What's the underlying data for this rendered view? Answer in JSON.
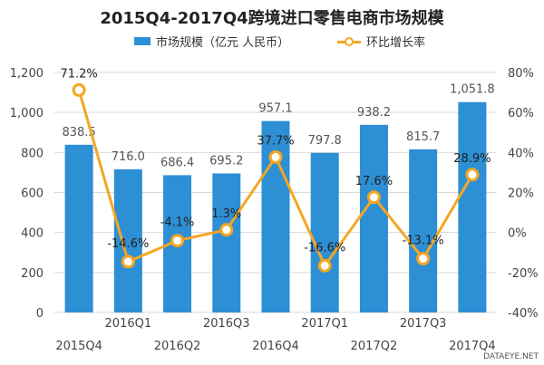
{
  "title": "2015Q4-2017Q4跨境进口零售电商市场规模",
  "legend": {
    "bar_label": "市场规模（亿元 人民币）",
    "line_label": "环比增长率"
  },
  "watermark": "DATAEYE.NET",
  "colors": {
    "bar": "#2d8fd4",
    "line": "#f5a623",
    "grid": "#d9d9d9"
  },
  "chart_data": {
    "type": "bar",
    "title": "2015Q4-2017Q4跨境进口零售电商市场规模",
    "categories": [
      "2015Q4",
      "2016Q1",
      "2016Q2",
      "2016Q3",
      "2016Q4",
      "2017Q1",
      "2017Q2",
      "2017Q3",
      "2017Q4"
    ],
    "series": [
      {
        "name": "市场规模（亿元 人民币）",
        "type": "bar",
        "axis": "left",
        "values": [
          838.5,
          716.0,
          686.4,
          695.2,
          957.1,
          797.8,
          938.2,
          815.7,
          1051.8
        ],
        "labels": [
          "838.5",
          "716.0",
          "686.4",
          "695.2",
          "957.1",
          "797.8",
          "938.2",
          "815.7",
          "1,051.8"
        ]
      },
      {
        "name": "环比增长率",
        "type": "line",
        "axis": "right",
        "values": [
          71.2,
          -14.6,
          -4.1,
          1.3,
          37.7,
          -16.6,
          17.6,
          -13.1,
          28.9
        ],
        "labels": [
          "71.2%",
          "-14.6%",
          "-4.1%",
          "1.3%",
          "37.7%",
          "-16.6%",
          "17.6%",
          "-13.1%",
          "28.9%"
        ]
      }
    ],
    "y_left": {
      "min": 0,
      "max": 1200,
      "ticks": [
        0,
        200,
        400,
        600,
        800,
        1000,
        1200
      ],
      "tick_labels": [
        "0",
        "200",
        "400",
        "600",
        "800",
        "1,000",
        "1,200"
      ]
    },
    "y_right": {
      "min": -40,
      "max": 80,
      "ticks": [
        -40,
        -20,
        0,
        20,
        40,
        60,
        80
      ],
      "tick_labels": [
        "-40%",
        "-20%",
        "0%",
        "20%",
        "40%",
        "60%",
        "80%"
      ]
    },
    "legend_position": "top",
    "grid": true
  }
}
